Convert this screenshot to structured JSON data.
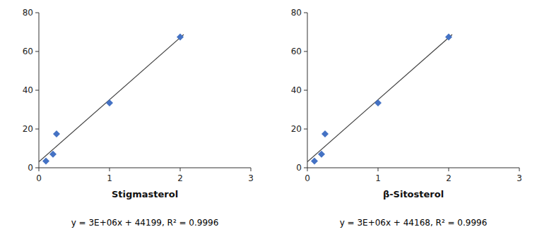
{
  "chart_data": [
    {
      "type": "scatter",
      "x_label": "Stigmasterol",
      "annotation": "y = 3E+06x + 44199, R² = 0.9996",
      "xlim": [
        0,
        3
      ],
      "ylim": [
        0,
        80
      ],
      "xticks": [
        0,
        1,
        2,
        3
      ],
      "yticks": [
        0,
        20,
        40,
        60,
        80
      ],
      "grid": false,
      "series": [
        {
          "type": "scatter",
          "marker": "diamond",
          "color": "#4472C4",
          "x": [
            0.1,
            0.2,
            0.25,
            1.0,
            2.0
          ],
          "values": [
            3.5,
            7.0,
            17.5,
            33.5,
            67.5
          ]
        },
        {
          "type": "line",
          "line_style": "solid",
          "color": "#404040",
          "x": [
            0,
            2.05
          ],
          "values": [
            3.0550733025,
            68.7270447531
          ]
        }
      ]
    },
    {
      "type": "scatter",
      "x_label": "β-Sitosterol",
      "annotation": "y = 3E+06x + 44168, R² = 0.9996",
      "xlim": [
        0,
        3
      ],
      "ylim": [
        0,
        80
      ],
      "xticks": [
        0,
        1,
        2,
        3
      ],
      "yticks": [
        0,
        20,
        40,
        60,
        80
      ],
      "grid": false,
      "series": [
        {
          "type": "scatter",
          "marker": "diamond",
          "color": "#4472C4",
          "x": [
            0.1,
            0.2,
            0.25,
            1.0,
            2.0
          ],
          "values": [
            3.5,
            7.0,
            17.5,
            33.5,
            67.5
          ]
        },
        {
          "type": "line",
          "line_style": "solid",
          "color": "#404040",
          "x": [
            0,
            2.05
          ],
          "values": [
            3.0550733025,
            68.7270447531
          ]
        }
      ]
    }
  ]
}
